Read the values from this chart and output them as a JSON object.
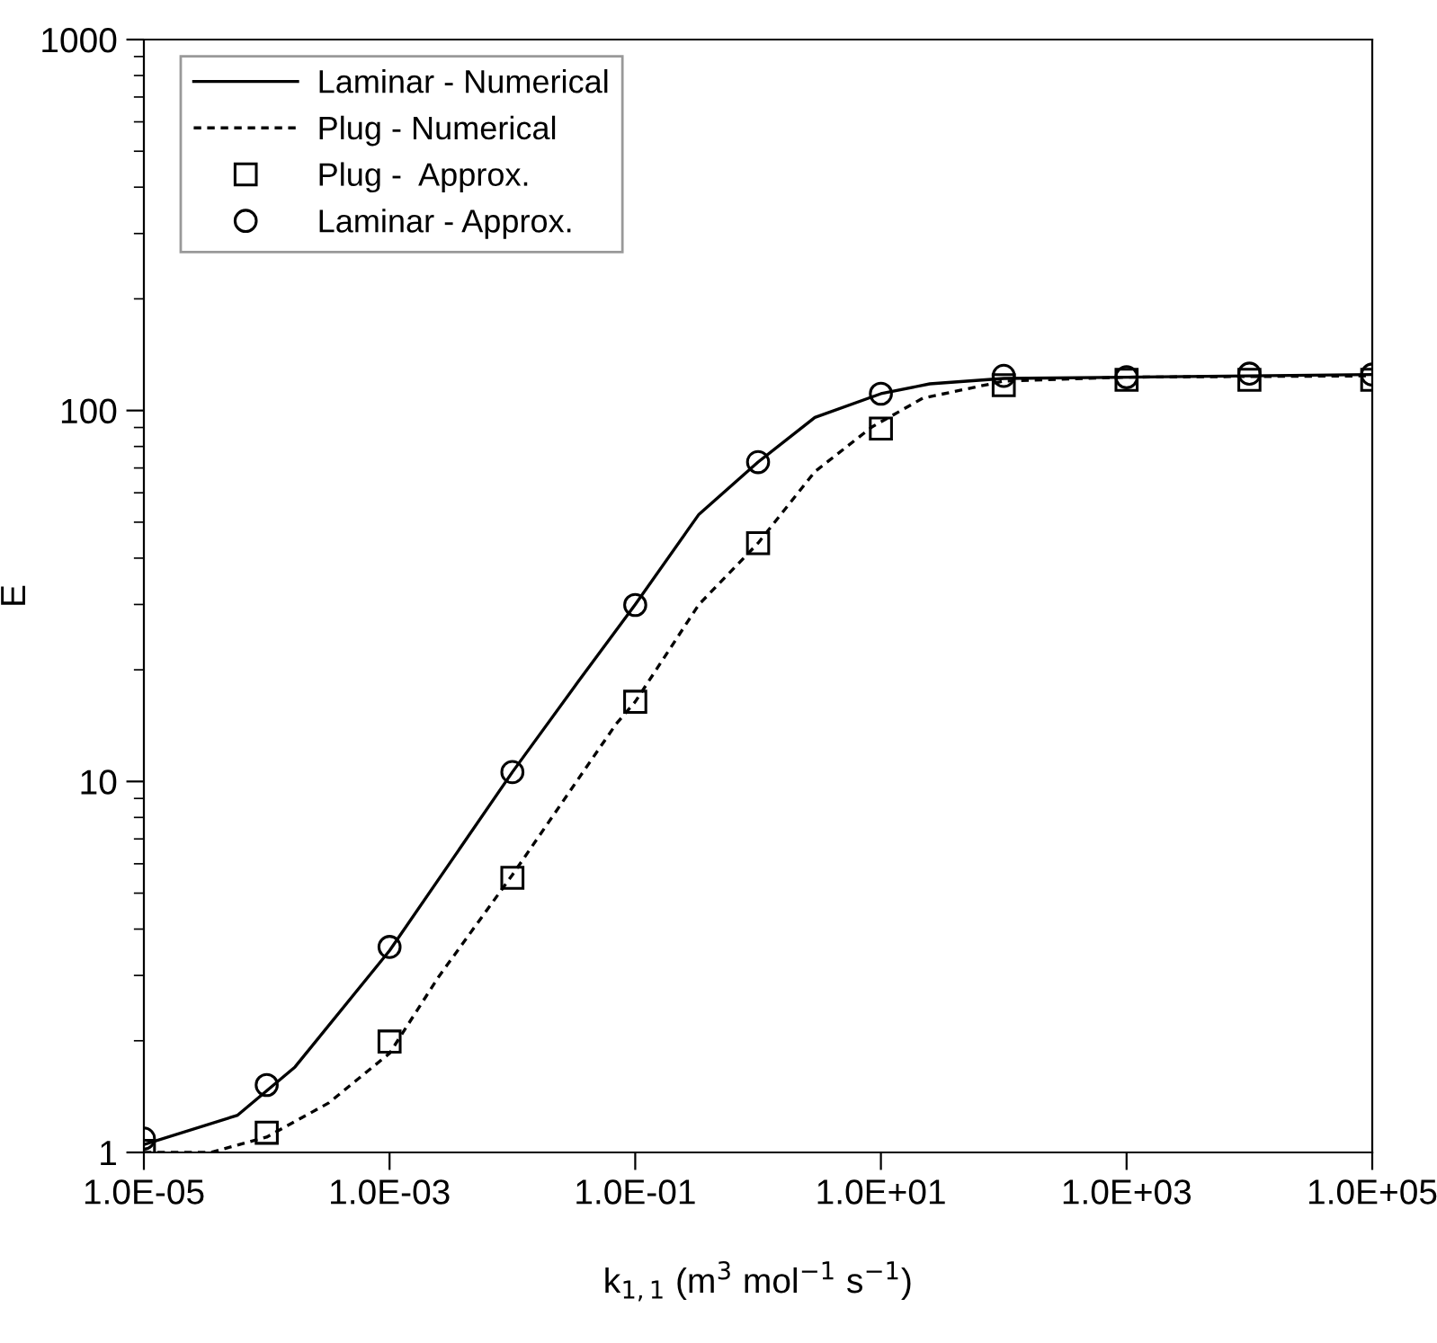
{
  "chart_data": {
    "type": "line",
    "xlabel": "k$_{1,1}$ (m$^{3}$ mol$^{−1}$ s$^{−1}$)",
    "ylabel": "E",
    "log": "xy",
    "xlim": [
      1e-05,
      100000.0
    ],
    "ylim": [
      1,
      1000
    ],
    "xticks": [
      {
        "value": 1e-05,
        "label": "1.0E-05"
      },
      {
        "value": 0.001,
        "label": "1.0E-03"
      },
      {
        "value": 0.1,
        "label": "1.0E-01"
      },
      {
        "value": 10,
        "label": "1.0E+01"
      },
      {
        "value": 1000,
        "label": "1.0E+03"
      },
      {
        "value": 100000,
        "label": "1.0E+05"
      }
    ],
    "yticks": [
      1,
      10,
      100,
      1000
    ],
    "grid": false,
    "legend": "top left",
    "series": [
      {
        "name": "Laminar - Numerical",
        "line_style": "solid",
        "marker": "none",
        "color": "#000000",
        "x": [
          1e-05,
          5.8e-05,
          0.00017,
          0.001,
          0.01,
          0.034,
          0.1,
          0.33,
          1,
          2.9,
          10,
          25,
          100,
          1000,
          10000,
          100000
        ],
        "values": [
          1.05,
          1.26,
          1.7,
          3.5,
          10.6,
          18.5,
          30,
          52.5,
          72.6,
          95.8,
          111,
          118,
          122,
          123,
          124,
          125
        ]
      },
      {
        "name": "Plug - Numerical",
        "line_style": "dashed",
        "marker": "none",
        "color": "#000000",
        "x": [
          1e-05,
          3.5e-05,
          0.0001,
          0.00032,
          0.001,
          0.0025,
          0.01,
          0.07,
          0.1,
          0.33,
          1,
          2.9,
          8.5,
          22,
          100,
          1000,
          100000
        ],
        "values": [
          1.0,
          1.0,
          1.1,
          1.36,
          1.85,
          2.97,
          5.6,
          14.3,
          16.4,
          30,
          43.9,
          68.4,
          90.4,
          108,
          120,
          123,
          124
        ]
      },
      {
        "name": "Plug -  Approx.",
        "type": "scatter",
        "marker": "square",
        "color": "#000000",
        "x": [
          1e-05,
          0.0001,
          0.001,
          0.01,
          0.1,
          1,
          10,
          100,
          1000,
          10000,
          100000
        ],
        "values": [
          1.01,
          1.13,
          1.99,
          5.5,
          16.4,
          43.9,
          89.4,
          117,
          121,
          121,
          121
        ]
      },
      {
        "name": "Laminar - Approx.",
        "type": "scatter",
        "marker": "circle",
        "color": "#000000",
        "x": [
          1e-05,
          0.0001,
          0.001,
          0.01,
          0.1,
          1,
          10,
          100,
          1000,
          10000,
          100000
        ],
        "values": [
          1.09,
          1.52,
          3.58,
          10.6,
          29.9,
          72.6,
          111,
          124,
          123,
          125.7,
          125
        ]
      }
    ]
  }
}
